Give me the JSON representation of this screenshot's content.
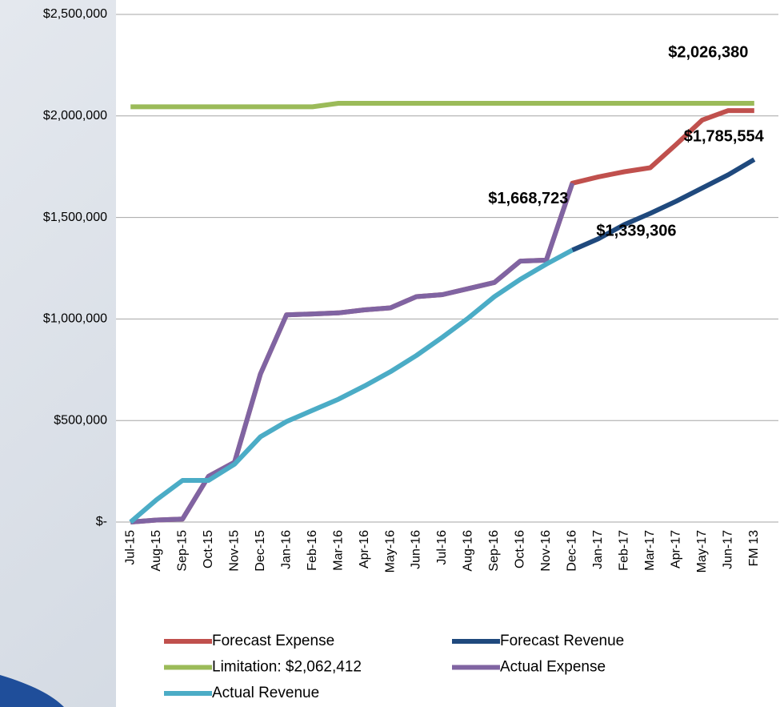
{
  "chart_data": {
    "type": "line",
    "categories": [
      "Jul-15",
      "Aug-15",
      "Sep-15",
      "Oct-15",
      "Nov-15",
      "Dec-15",
      "Jan-16",
      "Feb-16",
      "Mar-16",
      "Apr-16",
      "May-16",
      "Jun-16",
      "Jul-16",
      "Aug-16",
      "Sep-16",
      "Oct-16",
      "Nov-16",
      "Dec-16",
      "Jan-17",
      "Feb-17",
      "Mar-17",
      "Apr-17",
      "May-17",
      "Jun-17",
      "FM 13"
    ],
    "ylim": [
      0,
      2500000
    ],
    "yticks": [
      {
        "value": 0,
        "label": "$-"
      },
      {
        "value": 500000,
        "label": "$500,000"
      },
      {
        "value": 1000000,
        "label": "$1,000,000"
      },
      {
        "value": 1500000,
        "label": "$1,500,000"
      },
      {
        "value": 2000000,
        "label": "$2,000,000"
      },
      {
        "value": 2500000,
        "label": "$2,500,000"
      }
    ],
    "grid": true,
    "legend": "bottom",
    "series": [
      {
        "name": "Forecast Expense",
        "color": "#c0504d",
        "values": [
          0,
          10000,
          15000,
          225000,
          295000,
          730000,
          1020000,
          1025000,
          1030000,
          1045000,
          1055000,
          1110000,
          1120000,
          1150000,
          1180000,
          1285000,
          1290000,
          1668723,
          1700000,
          1725000,
          1745000,
          1860000,
          1980000,
          2026380,
          2026380
        ],
        "value_labels": [
          null,
          null,
          null,
          null,
          null,
          null,
          null,
          null,
          null,
          null,
          null,
          null,
          null,
          null,
          null,
          null,
          null,
          null,
          null,
          null,
          null,
          null,
          null,
          "$2,026,380",
          null
        ]
      },
      {
        "name": "Forecast Revenue",
        "color": "#1f497d",
        "values": [
          null,
          null,
          null,
          null,
          null,
          null,
          null,
          null,
          null,
          null,
          null,
          null,
          null,
          null,
          null,
          null,
          null,
          1339306,
          1395000,
          1465000,
          1520000,
          1580000,
          1645000,
          1710000,
          1785554
        ],
        "value_labels": [
          null,
          null,
          null,
          null,
          null,
          null,
          null,
          null,
          null,
          null,
          null,
          null,
          null,
          null,
          null,
          null,
          null,
          null,
          null,
          null,
          null,
          null,
          null,
          null,
          "$1,785,554"
        ]
      },
      {
        "name": "Limitation: $2,062,412",
        "color": "#9bbb59",
        "values": [
          2045000,
          2045000,
          2045000,
          2045000,
          2045000,
          2045000,
          2045000,
          2045000,
          2062412,
          2062412,
          2062412,
          2062412,
          2062412,
          2062412,
          2062412,
          2062412,
          2062412,
          2062412,
          2062412,
          2062412,
          2062412,
          2062412,
          2062412,
          2062412,
          2062412
        ]
      },
      {
        "name": "Actual Expense",
        "color": "#8064a2",
        "values": [
          0,
          10000,
          15000,
          225000,
          295000,
          730000,
          1020000,
          1025000,
          1030000,
          1045000,
          1055000,
          1110000,
          1120000,
          1150000,
          1180000,
          1285000,
          1290000,
          1668723,
          null,
          null,
          null,
          null,
          null,
          null,
          null
        ],
        "value_labels": [
          null,
          null,
          null,
          null,
          null,
          null,
          null,
          null,
          null,
          null,
          null,
          null,
          null,
          null,
          null,
          null,
          null,
          "$1,668,723",
          null,
          null,
          null,
          null,
          null,
          null,
          null
        ]
      },
      {
        "name": "Actual Revenue",
        "color": "#4bacc6",
        "values": [
          0,
          110000,
          205000,
          205000,
          285000,
          420000,
          495000,
          550000,
          605000,
          670000,
          740000,
          820000,
          910000,
          1005000,
          1110000,
          1195000,
          1270000,
          1339306,
          null,
          null,
          null,
          null,
          null,
          null,
          null
        ],
        "value_labels": [
          null,
          null,
          null,
          null,
          null,
          null,
          null,
          null,
          null,
          null,
          null,
          null,
          null,
          null,
          null,
          null,
          null,
          "$1,339,306",
          null,
          null,
          null,
          null,
          null,
          null,
          null
        ]
      }
    ]
  }
}
